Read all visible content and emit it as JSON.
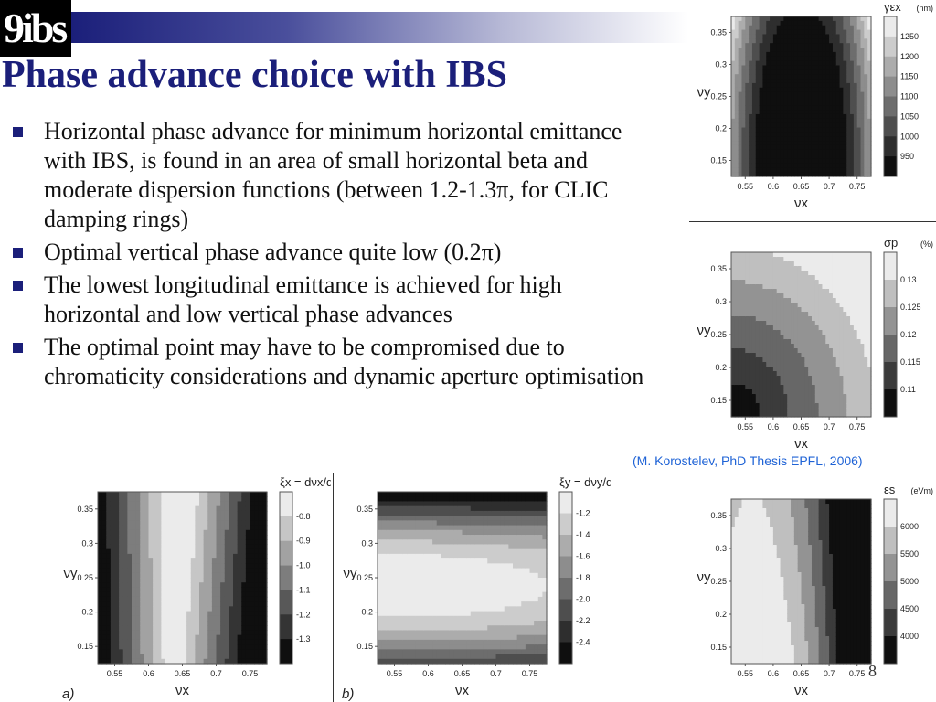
{
  "logo": {
    "text": "9ibs"
  },
  "slide": {
    "title": "Phase advance choice with IBS",
    "bullets": [
      "Horizontal phase advance for minimum horizontal emittance with IBS, is found in an area of small horizontal beta and moderate dispersion functions (between 1.2-1.3π, for CLIC damping rings)",
      "Optimal vertical phase advance quite low (0.2π)",
      "The lowest longitudinal emittance is achieved for high horizontal and low vertical phase advances",
      "The optimal point may have to be compromised due to chromaticity considerations and dynamic aperture optimisation"
    ],
    "citation": "(M. Korostelev, PhD Thesis EPFL, 2006)",
    "page_number": "8"
  },
  "chart_data": [
    {
      "id": "gamma_ex",
      "type": "heatmap",
      "title": "γεx",
      "unit": "(nm)",
      "xlabel": "νx",
      "ylabel": "νy",
      "x_ticks": [
        "0.55",
        "0.6",
        "0.65",
        "0.7",
        "0.75"
      ],
      "y_ticks": [
        "0.35",
        "0.3",
        "0.25",
        "0.2",
        "0.15"
      ],
      "legend_values": [
        "1250",
        "1200",
        "1150",
        "1100",
        "1050",
        "1000",
        "950"
      ],
      "style": "saddle",
      "panel_label": ""
    },
    {
      "id": "sigma_p",
      "type": "heatmap",
      "title": "σp",
      "unit": "(%)",
      "xlabel": "νx",
      "ylabel": "νy",
      "x_ticks": [
        "0.55",
        "0.6",
        "0.65",
        "0.7",
        "0.75"
      ],
      "y_ticks": [
        "0.35",
        "0.3",
        "0.25",
        "0.2",
        "0.15"
      ],
      "legend_values": [
        "0.13",
        "0.125",
        "0.12",
        "0.115",
        "0.11"
      ],
      "style": "corner_bl",
      "panel_label": ""
    },
    {
      "id": "eps_s",
      "type": "heatmap",
      "title": "εs",
      "unit": "(eVm)",
      "xlabel": "νx",
      "ylabel": "νy",
      "x_ticks": [
        "0.55",
        "0.6",
        "0.65",
        "0.7",
        "0.75"
      ],
      "y_ticks": [
        "0.35",
        "0.3",
        "0.25",
        "0.2",
        "0.15"
      ],
      "legend_values": [
        "6000",
        "5500",
        "5000",
        "4500",
        "4000"
      ],
      "style": "valley_left",
      "panel_label": ""
    },
    {
      "id": "xi_x",
      "type": "heatmap",
      "title": "ξx = dνx/dδ",
      "unit": "",
      "xlabel": "νx",
      "ylabel": "νy",
      "x_ticks": [
        "0.55",
        "0.6",
        "0.65",
        "0.7",
        "0.75"
      ],
      "y_ticks": [
        "0.35",
        "0.3",
        "0.25",
        "0.2",
        "0.15"
      ],
      "legend_values": [
        "-0.8",
        "-0.9",
        "-1.0",
        "-1.1",
        "-1.2",
        "-1.3"
      ],
      "style": "vertical_band",
      "panel_label": "a)"
    },
    {
      "id": "xi_y",
      "type": "heatmap",
      "title": "ξy = dνy/dδ",
      "unit": "",
      "xlabel": "νx",
      "ylabel": "νy",
      "x_ticks": [
        "0.55",
        "0.6",
        "0.65",
        "0.7",
        "0.75"
      ],
      "y_ticks": [
        "0.35",
        "0.3",
        "0.25",
        "0.2",
        "0.15"
      ],
      "legend_values": [
        "-1.2",
        "-1.4",
        "-1.6",
        "-1.8",
        "-2.0",
        "-2.2",
        "-2.4"
      ],
      "style": "horizontal_band",
      "panel_label": "b)"
    }
  ]
}
